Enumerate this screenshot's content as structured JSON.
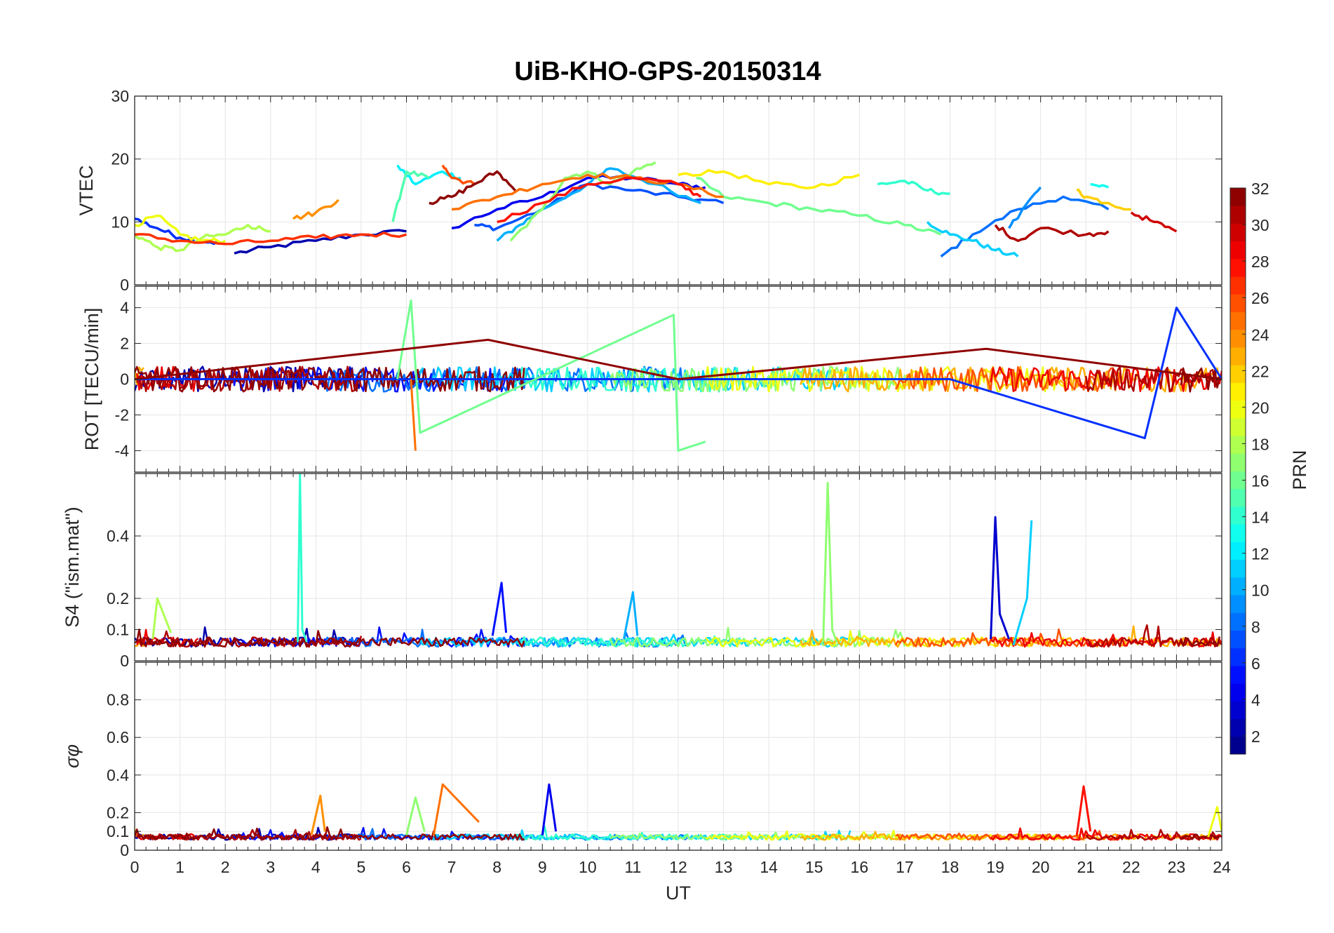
{
  "chart_data": [
    {
      "type": "line",
      "title": "UiB-KHO-GPS-20150314",
      "panel": "top",
      "ylabel": "VTEC",
      "xlabel": "",
      "xlim": [
        0,
        24
      ],
      "ylim": [
        0,
        30
      ],
      "yticks": [
        "0",
        "10",
        "20",
        "30"
      ],
      "grid": true,
      "series": [
        {
          "prn": 2,
          "x": [
            2.2,
            3.0,
            4.0,
            5.0,
            6.0
          ],
          "y": [
            5.0,
            6.0,
            7.0,
            8.0,
            8.5
          ]
        },
        {
          "prn": 4,
          "x": [
            7.0,
            8.0,
            9.0,
            10.0,
            11.0,
            12.0,
            12.6
          ],
          "y": [
            9.0,
            12.0,
            14.0,
            17.0,
            17.0,
            16.0,
            15.5
          ]
        },
        {
          "prn": 6,
          "x": [
            0.0,
            0.5,
            1.0,
            1.5,
            2.0
          ],
          "y": [
            10.5,
            9.0,
            7.5,
            7.0,
            6.5
          ]
        },
        {
          "prn": 7,
          "x": [
            7.5,
            8.0,
            9.0,
            10.0,
            11.0,
            12.0,
            13.0
          ],
          "y": [
            9.5,
            9.0,
            12.0,
            16.0,
            15.0,
            14.0,
            13.0
          ]
        },
        {
          "prn": 8,
          "x": [
            17.8,
            18.5,
            19.5,
            20.5,
            21.5
          ],
          "y": [
            4.5,
            8.0,
            12.0,
            14.0,
            12.0
          ]
        },
        {
          "prn": 9,
          "x": [
            19.3,
            19.6,
            20.0
          ],
          "y": [
            9.0,
            12.0,
            15.5
          ]
        },
        {
          "prn": 10,
          "x": [
            8.0,
            8.5,
            9.0,
            10.0,
            10.5,
            11.5,
            12.5
          ],
          "y": [
            7.0,
            9.5,
            12.0,
            16.0,
            18.5,
            16.0,
            13.0
          ]
        },
        {
          "prn": 11,
          "x": [
            17.5,
            18.0,
            18.5,
            19.0,
            19.5
          ],
          "y": [
            10.0,
            8.0,
            7.0,
            5.5,
            4.5
          ]
        },
        {
          "prn": 12,
          "x": [
            5.8,
            6.2,
            6.8,
            7.2
          ],
          "y": [
            19.0,
            16.0,
            18.0,
            17.0
          ]
        },
        {
          "prn": 13,
          "x": [
            21.1,
            21.5
          ],
          "y": [
            16.0,
            15.5
          ]
        },
        {
          "prn": 14,
          "x": [
            16.4,
            17.0,
            17.5,
            18.0
          ],
          "y": [
            16.0,
            16.5,
            15.0,
            14.5
          ]
        },
        {
          "prn": 15,
          "x": [
            5.7,
            6.0,
            6.5
          ],
          "y": [
            10.0,
            18.0,
            17.0
          ]
        },
        {
          "prn": 16,
          "x": [
            12.4,
            13.0,
            14.0,
            15.0,
            16.0,
            17.0,
            17.8
          ],
          "y": [
            17.0,
            14.0,
            13.0,
            12.0,
            11.0,
            9.5,
            8.0
          ]
        },
        {
          "prn": 17,
          "x": [
            8.3,
            9.0,
            9.5,
            10.0,
            10.5,
            11.0,
            11.5
          ],
          "y": [
            7.0,
            12.0,
            17.0,
            18.0,
            16.0,
            18.0,
            19.5
          ]
        },
        {
          "prn": 18,
          "x": [
            0.0,
            0.5,
            1.0,
            1.5,
            2.0,
            2.5,
            3.0
          ],
          "y": [
            8.0,
            6.0,
            5.5,
            7.5,
            8.0,
            9.5,
            8.5
          ]
        },
        {
          "prn": 20,
          "x": [
            0.0,
            0.5,
            1.0,
            1.5,
            2.0
          ],
          "y": [
            9.5,
            11.0,
            8.0,
            7.0,
            7.0
          ]
        },
        {
          "prn": 21,
          "x": [
            12.0,
            13.0,
            14.0,
            15.0,
            16.0
          ],
          "y": [
            17.5,
            18.0,
            16.0,
            15.5,
            17.5
          ]
        },
        {
          "prn": 22,
          "x": [
            20.8,
            21.0,
            21.5,
            22.0
          ],
          "y": [
            15.0,
            14.0,
            13.0,
            12.0
          ]
        },
        {
          "prn": 24,
          "x": [
            3.5,
            4.0,
            4.5
          ],
          "y": [
            10.5,
            11.5,
            13.5
          ]
        },
        {
          "prn": 25,
          "x": [
            7.0,
            8.0,
            9.0,
            10.0,
            11.0,
            12.0,
            13.0
          ],
          "y": [
            12.0,
            14.0,
            16.0,
            17.5,
            17.0,
            16.0,
            14.0
          ]
        },
        {
          "prn": 26,
          "x": [
            6.8,
            7.0,
            7.5
          ],
          "y": [
            19.0,
            17.0,
            16.0
          ]
        },
        {
          "prn": 27,
          "x": [
            0.0,
            1.0,
            2.0,
            3.0,
            4.0,
            5.0,
            6.0
          ],
          "y": [
            8.0,
            7.0,
            6.5,
            7.0,
            7.5,
            8.0,
            8.0
          ]
        },
        {
          "prn": 28,
          "x": [
            8.0,
            9.0,
            10.0,
            11.0,
            12.0,
            12.5
          ],
          "y": [
            10.0,
            13.0,
            16.0,
            17.0,
            16.0,
            14.0
          ]
        },
        {
          "prn": 30,
          "x": [
            22.0,
            22.5,
            23.0
          ],
          "y": [
            11.5,
            10.0,
            8.5
          ]
        },
        {
          "prn": 31,
          "x": [
            19.0,
            19.5,
            20.0,
            21.0,
            21.5
          ],
          "y": [
            9.5,
            7.0,
            9.0,
            8.0,
            8.5
          ]
        },
        {
          "prn": 32,
          "x": [
            6.5,
            7.0,
            7.5,
            8.0,
            8.4
          ],
          "y": [
            13.0,
            14.0,
            16.0,
            18.0,
            15.0
          ]
        }
      ]
    },
    {
      "type": "line",
      "panel": "second",
      "ylabel": "ROT [TECU/min]",
      "xlabel": "",
      "xlim": [
        0,
        24
      ],
      "ylim": [
        -5.2,
        5.2
      ],
      "yticks": [
        "-4",
        "-2",
        "0",
        "2",
        "4"
      ],
      "grid": true,
      "series": [
        {
          "prn": 6,
          "x": [
            0.0,
            6.0,
            12.0,
            18.0,
            22.3,
            23.0,
            24.0
          ],
          "y": [
            0.0,
            0.0,
            0.0,
            0.0,
            -3.3,
            4.0,
            0.0
          ]
        },
        {
          "prn": 16,
          "x": [
            5.8,
            6.1,
            6.3,
            11.9,
            12.0,
            12.6
          ],
          "y": [
            0.0,
            4.4,
            -3.0,
            3.6,
            -4.0,
            -3.5
          ]
        },
        {
          "prn": 25,
          "x": [
            6.1,
            6.2
          ],
          "y": [
            0.0,
            -4.0
          ]
        },
        {
          "prn": 32,
          "x": [
            0.0,
            7.8,
            12.0,
            18.8,
            24.0
          ],
          "y": [
            0.0,
            2.2,
            0.0,
            1.7,
            0.0
          ]
        }
      ]
    },
    {
      "type": "line",
      "panel": "third",
      "ylabel": "S4 (\"ism.mat\")",
      "xlabel": "",
      "xlim": [
        0,
        24
      ],
      "ylim": [
        0,
        0.6
      ],
      "yticks": [
        "0",
        "0.1",
        "0.2",
        "0.4"
      ],
      "grid": true,
      "series": [
        {
          "prn": 14,
          "x": [
            3.6,
            3.65,
            3.7,
            3.8
          ],
          "y": [
            0.06,
            0.6,
            0.1,
            0.06
          ]
        },
        {
          "prn": 17,
          "x": [
            15.2,
            15.3,
            15.4,
            15.5
          ],
          "y": [
            0.06,
            0.57,
            0.1,
            0.06
          ]
        },
        {
          "prn": 3,
          "x": [
            18.9,
            19.0,
            19.1,
            19.3
          ],
          "y": [
            0.07,
            0.46,
            0.15,
            0.07
          ]
        },
        {
          "prn": 11,
          "x": [
            19.4,
            19.7,
            19.8
          ],
          "y": [
            0.05,
            0.2,
            0.45
          ]
        },
        {
          "prn": 5,
          "x": [
            7.9,
            8.1,
            8.2
          ],
          "y": [
            0.08,
            0.25,
            0.09
          ]
        },
        {
          "prn": 10,
          "x": [
            10.8,
            11.0,
            11.1
          ],
          "y": [
            0.07,
            0.22,
            0.08
          ]
        },
        {
          "prn": 18,
          "x": [
            0.4,
            0.5,
            0.8
          ],
          "y": [
            0.07,
            0.2,
            0.09
          ]
        }
      ]
    },
    {
      "type": "line",
      "panel": "bottom",
      "ylabel": "σφ",
      "xlabel": "UT",
      "xlim": [
        0,
        24
      ],
      "ylim": [
        0,
        1
      ],
      "xticks": [
        "0",
        "1",
        "2",
        "3",
        "4",
        "5",
        "6",
        "7",
        "8",
        "9",
        "10",
        "11",
        "12",
        "13",
        "14",
        "15",
        "16",
        "17",
        "18",
        "19",
        "20",
        "21",
        "22",
        "23",
        "24"
      ],
      "yticks": [
        "0",
        "0.1",
        "0.2",
        "0.4",
        "0.6",
        "0.8"
      ],
      "grid": true,
      "series": [
        {
          "prn": 25,
          "x": [
            6.6,
            6.8,
            7.2,
            7.6
          ],
          "y": [
            0.08,
            0.35,
            0.25,
            0.15
          ]
        },
        {
          "prn": 4,
          "x": [
            9.0,
            9.15,
            9.3
          ],
          "y": [
            0.08,
            0.35,
            0.1
          ]
        },
        {
          "prn": 28,
          "x": [
            20.8,
            20.95,
            21.1
          ],
          "y": [
            0.08,
            0.34,
            0.1
          ]
        },
        {
          "prn": 24,
          "x": [
            3.9,
            4.1,
            4.2
          ],
          "y": [
            0.08,
            0.29,
            0.1
          ]
        },
        {
          "prn": 17,
          "x": [
            6.0,
            6.2,
            6.4
          ],
          "y": [
            0.08,
            0.28,
            0.1
          ]
        },
        {
          "prn": 20,
          "x": [
            23.7,
            23.9,
            24.0
          ],
          "y": [
            0.07,
            0.23,
            0.1
          ]
        }
      ]
    }
  ],
  "colorbar": {
    "label": "PRN",
    "range": [
      1,
      32
    ],
    "ticks": [
      "2",
      "4",
      "6",
      "8",
      "10",
      "12",
      "14",
      "16",
      "18",
      "20",
      "22",
      "24",
      "26",
      "28",
      "30",
      "32"
    ]
  }
}
